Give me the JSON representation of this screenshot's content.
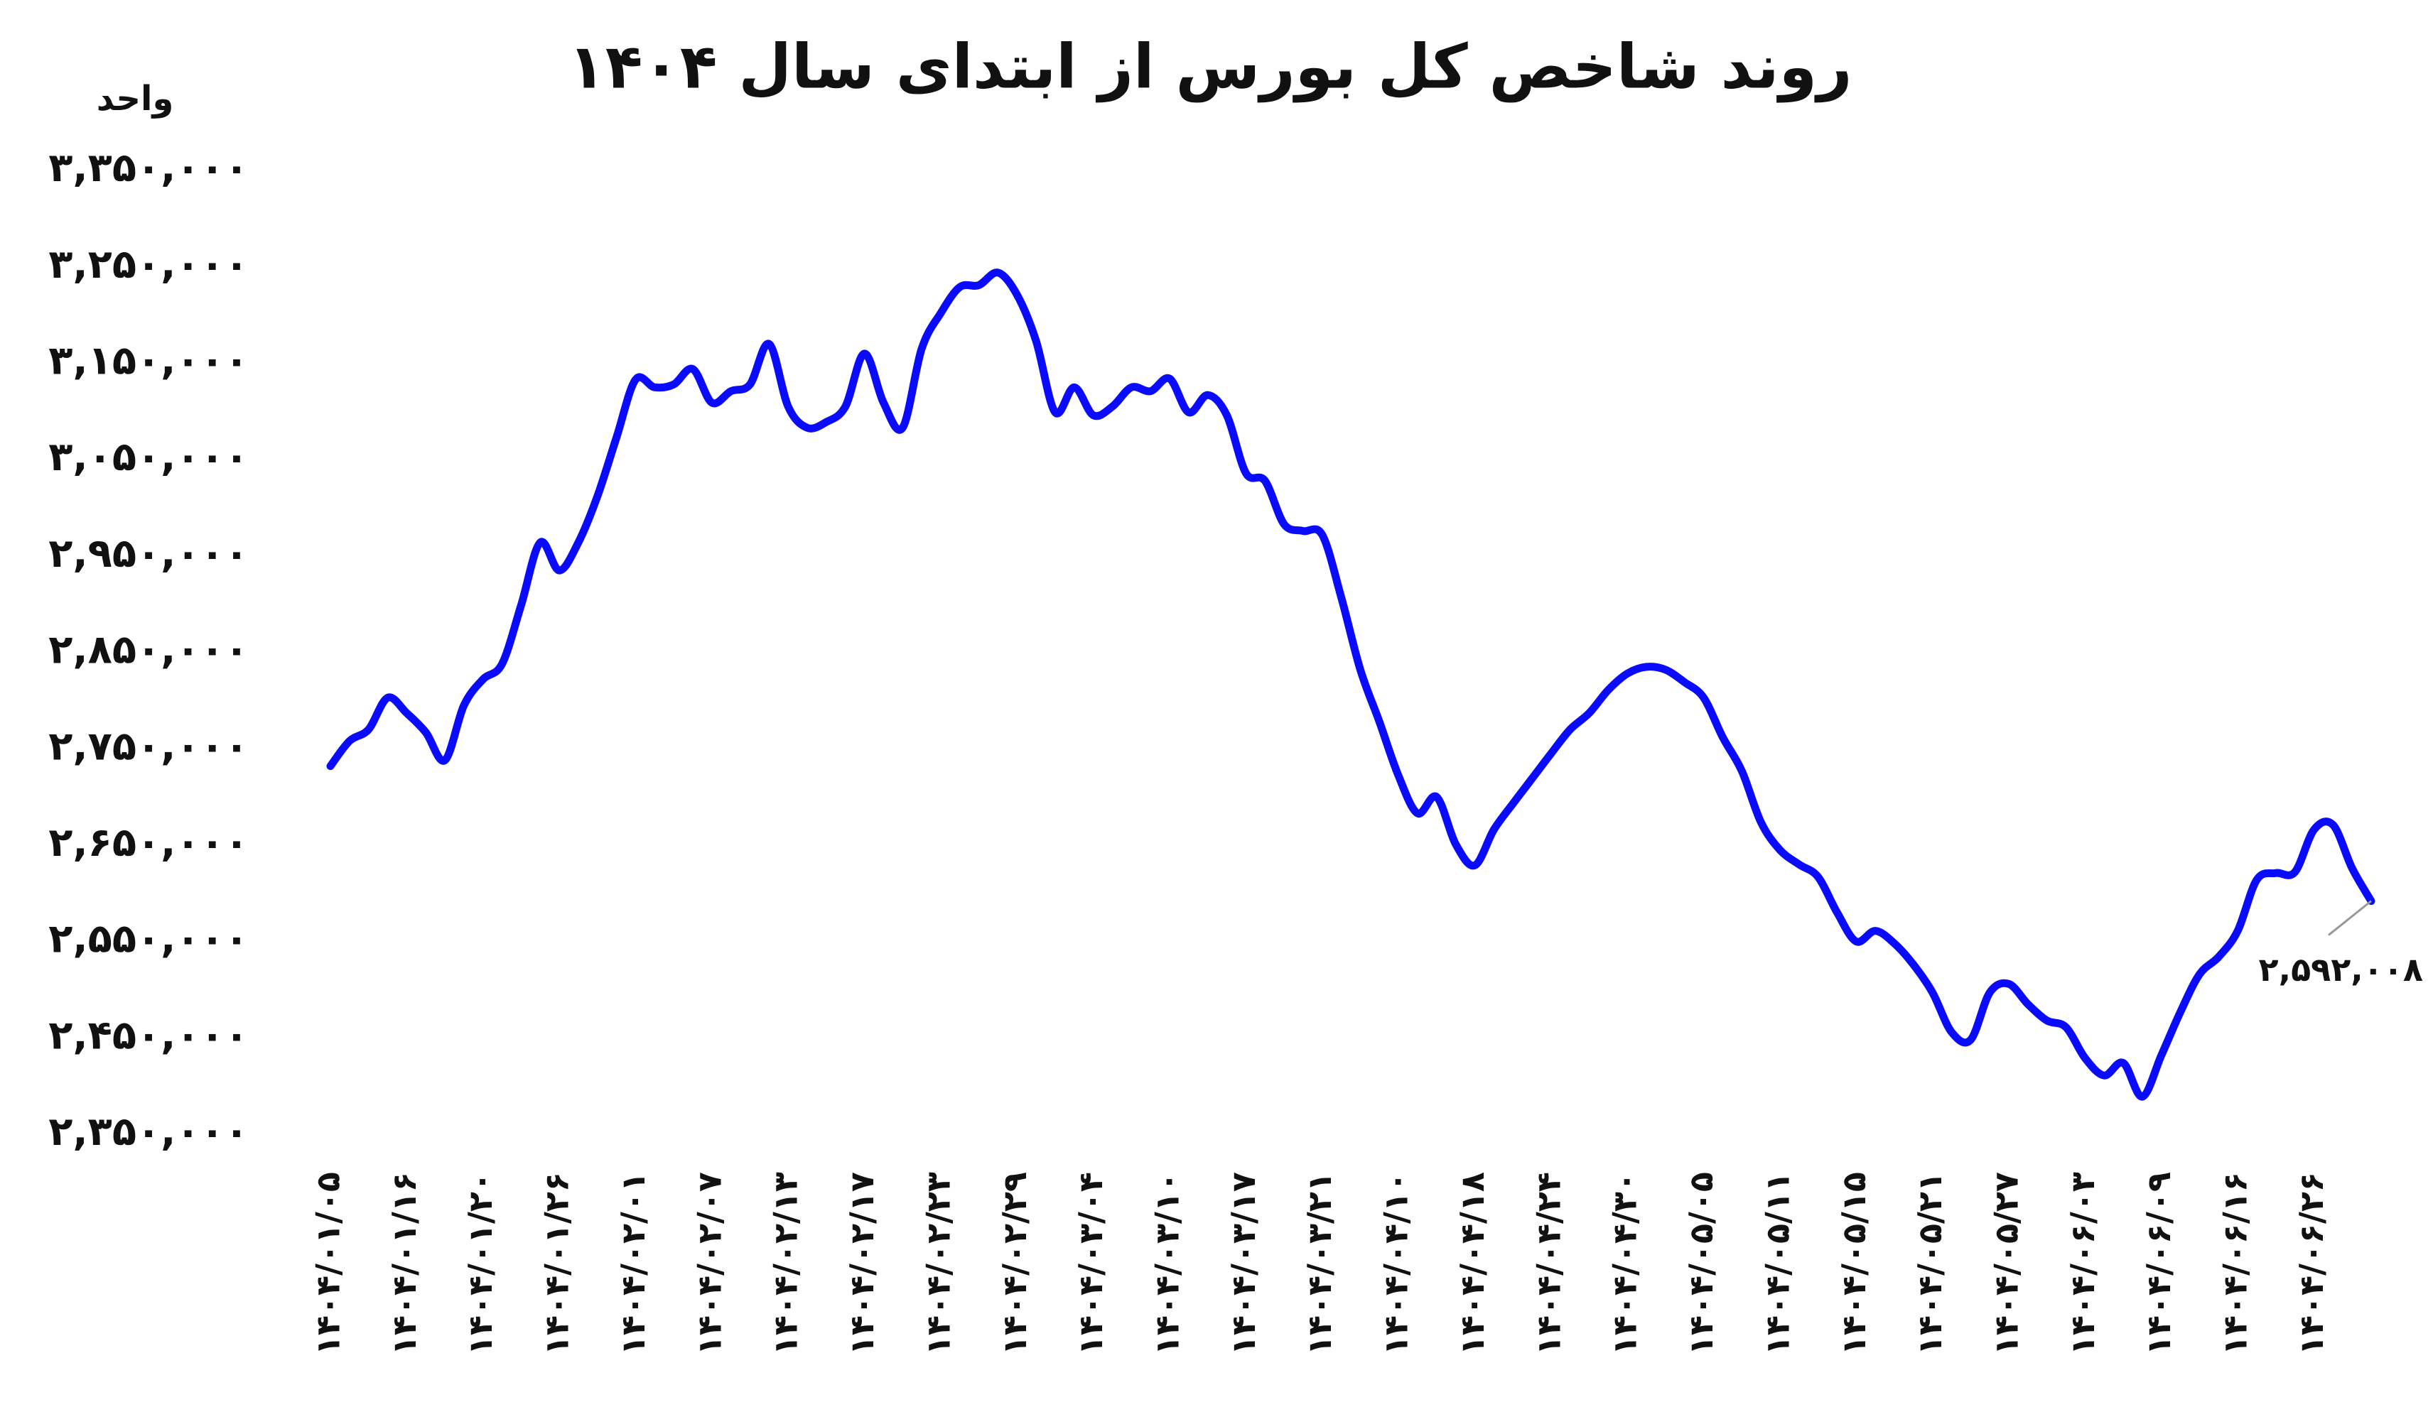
{
  "chart_data": {
    "type": "line",
    "title": "روند شاخص کل بورس از ابتدای سال ۱۴۰۴",
    "y_label": "واحد",
    "categories": [
      "۱۴۰۴/۰۱/۰۵",
      null,
      null,
      null,
      "۱۴۰۴/۰۱/۱۶",
      null,
      null,
      null,
      "۱۴۰۴/۰۱/۲۰",
      null,
      null,
      null,
      "۱۴۰۴/۰۱/۲۶",
      null,
      null,
      null,
      "۱۴۰۴/۰۲/۰۱",
      null,
      null,
      null,
      "۱۴۰۴/۰۲/۰۷",
      null,
      null,
      null,
      "۱۴۰۴/۰۲/۱۳",
      null,
      null,
      null,
      "۱۴۰۴/۰۲/۱۷",
      null,
      null,
      null,
      "۱۴۰۴/۰۲/۲۳",
      null,
      null,
      null,
      "۱۴۰۴/۰۲/۲۹",
      null,
      null,
      null,
      "۱۴۰۴/۰۳/۰۴",
      null,
      null,
      null,
      "۱۴۰۴/۰۳/۱۰",
      null,
      null,
      null,
      "۱۴۰۴/۰۳/۱۷",
      null,
      null,
      null,
      "۱۴۰۴/۰۳/۲۱",
      null,
      null,
      null,
      "۱۴۰۴/۰۴/۱۰",
      null,
      null,
      null,
      "۱۴۰۴/۰۴/۱۸",
      null,
      null,
      null,
      "۱۴۰۴/۰۴/۲۴",
      null,
      null,
      null,
      "۱۴۰۴/۰۴/۳۰",
      null,
      null,
      null,
      "۱۴۰۴/۰۵/۰۵",
      null,
      null,
      null,
      "۱۴۰۴/۰۵/۱۱",
      null,
      null,
      null,
      "۱۴۰۴/۰۵/۱۵",
      null,
      null,
      null,
      "۱۴۰۴/۰۵/۲۱",
      null,
      null,
      null,
      "۱۴۰۴/۰۵/۲۷",
      null,
      null,
      null,
      "۱۴۰۴/۰۶/۰۳",
      null,
      null,
      null,
      "۱۴۰۴/۰۶/۰۹",
      null,
      null,
      null,
      "۱۴۰۴/۰۶/۱۶",
      null,
      null,
      null,
      "۱۴۰۴/۰۶/۲۶",
      null,
      null,
      null
    ],
    "series": [
      {
        "name": null,
        "color": "#0a0aff",
        "values": [
          2732000,
          2758000,
          2770000,
          2803000,
          2787000,
          2767000,
          2738000,
          2795000,
          2822000,
          2838000,
          2899000,
          2964000,
          2935000,
          2964000,
          3012000,
          3073000,
          3133000,
          3125000,
          3128000,
          3144000,
          3109000,
          3121000,
          3128000,
          3170000,
          3105000,
          3083000,
          3089000,
          3105000,
          3160000,
          3109000,
          3083000,
          3165000,
          3202000,
          3229000,
          3231000,
          3244000,
          3221000,
          3173000,
          3099000,
          3125000,
          3096000,
          3105000,
          3125000,
          3121000,
          3134000,
          3099000,
          3117000,
          3096000,
          3036000,
          3028000,
          2983000,
          2976000,
          2972000,
          2907000,
          2832000,
          2778000,
          2722000,
          2683000,
          2700000,
          2651000,
          2629000,
          2666000,
          2693000,
          2719000,
          2745000,
          2770000,
          2787000,
          2811000,
          2828000,
          2835000,
          2832000,
          2819000,
          2803000,
          2762000,
          2727000,
          2674000,
          2645000,
          2630000,
          2617000,
          2580000,
          2550000,
          2561000,
          2548000,
          2526000,
          2497000,
          2456000,
          2448000,
          2497000,
          2506000,
          2485000,
          2468000,
          2461000,
          2429000,
          2411000,
          2424000,
          2389000,
          2432000,
          2477000,
          2516000,
          2534000,
          2561000,
          2614000,
          2621000,
          2622000,
          2666000,
          2671000,
          2626000,
          2592008
        ],
        "value_labels": [
          null,
          null,
          null,
          null,
          null,
          null,
          null,
          null,
          null,
          null,
          null,
          null,
          null,
          null,
          null,
          null,
          null,
          null,
          null,
          null,
          null,
          null,
          null,
          null,
          null,
          null,
          null,
          null,
          null,
          null,
          null,
          null,
          null,
          null,
          null,
          null,
          null,
          null,
          null,
          null,
          null,
          null,
          null,
          null,
          null,
          null,
          null,
          null,
          null,
          null,
          null,
          null,
          null,
          null,
          null,
          null,
          null,
          null,
          null,
          null,
          null,
          null,
          null,
          null,
          null,
          null,
          null,
          null,
          null,
          null,
          null,
          null,
          null,
          null,
          null,
          null,
          null,
          null,
          null,
          null,
          null,
          null,
          null,
          null,
          null,
          null,
          null,
          null,
          null,
          null,
          null,
          null,
          null,
          null,
          null,
          null,
          null,
          null,
          null,
          null,
          null,
          null,
          null,
          null,
          null,
          null,
          null,
          "۲,۵۹۲,۰۰۸"
        ]
      }
    ],
    "ylim": [
      2350000,
      3350000
    ],
    "yticks": [
      {
        "value": 2350000,
        "label": "۲,۳۵۰,۰۰۰"
      },
      {
        "value": 2450000,
        "label": "۲,۴۵۰,۰۰۰"
      },
      {
        "value": 2550000,
        "label": "۲,۵۵۰,۰۰۰"
      },
      {
        "value": 2650000,
        "label": "۲,۶۵۰,۰۰۰"
      },
      {
        "value": 2750000,
        "label": "۲,۷۵۰,۰۰۰"
      },
      {
        "value": 2850000,
        "label": "۲,۸۵۰,۰۰۰"
      },
      {
        "value": 2950000,
        "label": "۲,۹۵۰,۰۰۰"
      },
      {
        "value": 3050000,
        "label": "۳,۰۵۰,۰۰۰"
      },
      {
        "value": 3150000,
        "label": "۳,۱۵۰,۰۰۰"
      },
      {
        "value": 3250000,
        "label": "۳,۲۵۰,۰۰۰"
      },
      {
        "value": 3350000,
        "label": "۳,۳۵۰,۰۰۰"
      }
    ],
    "grid": false
  }
}
